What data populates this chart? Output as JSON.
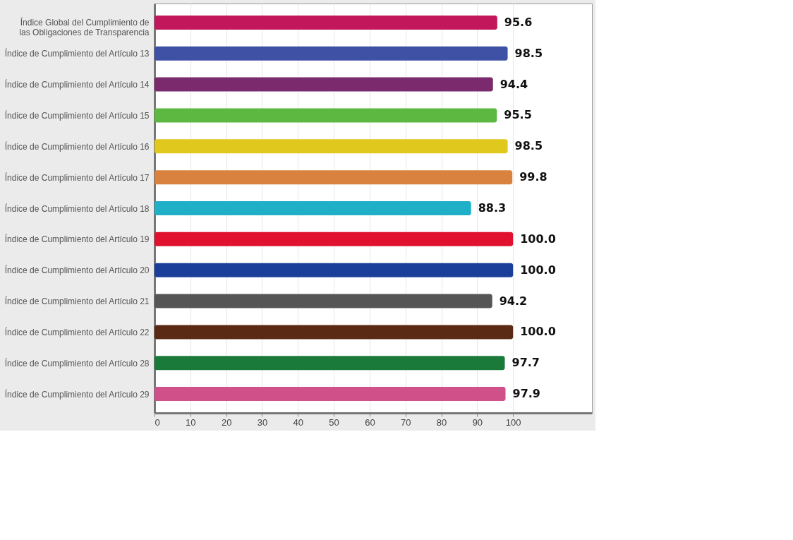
{
  "chart_data": {
    "type": "bar",
    "orientation": "horizontal",
    "categories": [
      "Índice Global del Cumplimiento de las Obligaciones de Transparencia",
      "Índice de Cumplimiento del Artículo 13",
      "Índice de Cumplimiento del Artículo 14",
      "Índice de Cumplimiento del Artículo 15",
      "Índice de Cumplimiento del Artículo 16",
      "Índice de Cumplimiento del Artículo 17",
      "Índice de Cumplimiento del Artículo 18",
      "Índice de Cumplimiento del Artículo 19",
      "Índice de Cumplimiento del Artículo 20",
      "Índice de Cumplimiento del Artículo 21",
      "Índice de Cumplimiento del Artículo 22",
      "Índice de Cumplimiento del Artículo 28",
      "Índice de Cumplimiento del Artículo 29"
    ],
    "values": [
      95.6,
      98.5,
      94.4,
      95.5,
      98.5,
      99.8,
      88.3,
      100.0,
      100.0,
      94.2,
      100.0,
      97.7,
      97.9
    ],
    "value_labels": [
      "95.6",
      "98.5",
      "94.4",
      "95.5",
      "98.5",
      "99.8",
      "88.3",
      "100.0",
      "100.0",
      "94.2",
      "100.0",
      "97.7",
      "97.9"
    ],
    "colors": [
      "#c2185b",
      "#3f51a5",
      "#7b2a6e",
      "#5cb840",
      "#e0c81c",
      "#d9823f",
      "#1fb0c8",
      "#e0102e",
      "#1a3f9a",
      "#555555",
      "#5a2a14",
      "#1a7a3a",
      "#d0508a"
    ],
    "xlim": [
      0,
      122
    ],
    "xticks": [
      0,
      10,
      20,
      30,
      40,
      50,
      60,
      70,
      80,
      90,
      100
    ],
    "grid": true
  }
}
